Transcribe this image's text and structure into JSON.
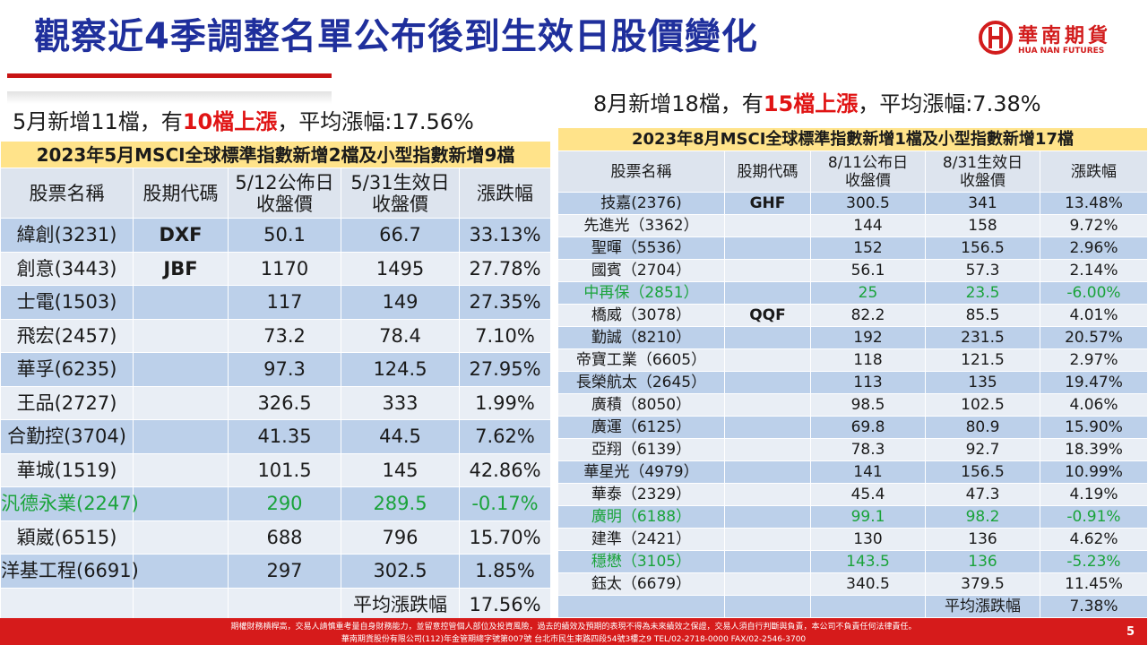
{
  "title": "觀察近4季調整名單公布後到生效日股價變化",
  "logo": {
    "cn": "華南期貨",
    "en": "HUA NAN FUTURES"
  },
  "colors": {
    "title": "#1f2f9c",
    "accent_red": "#e01414",
    "rise_down_green": "#1aa33a",
    "banner_yellow": "#ffe38a",
    "row_blue": "#bcd0ea",
    "row_light": "#e9eef5",
    "footer_red": "#d61b1b"
  },
  "left": {
    "summary": {
      "pre": "5月新增11檔，有",
      "highlight": "10檔上漲",
      "post": "，平均漲幅:17.56%"
    },
    "banner": "2023年5月MSCI全球標準指數新增2檔及小型指數新增9檔",
    "headers": [
      "股票名稱",
      "股期代碼",
      "5/12公佈日\n收盤價",
      "5/31生效日\n收盤價",
      "漲跌幅"
    ],
    "rows": [
      {
        "name": "緯創(3231)",
        "code": "DXF",
        "p1": "50.1",
        "p2": "66.7",
        "chg": "33.13%",
        "neg": false
      },
      {
        "name": "創意(3443)",
        "code": "JBF",
        "p1": "1170",
        "p2": "1495",
        "chg": "27.78%",
        "neg": false
      },
      {
        "name": "士電(1503)",
        "code": "",
        "p1": "117",
        "p2": "149",
        "chg": "27.35%",
        "neg": false
      },
      {
        "name": "飛宏(2457)",
        "code": "",
        "p1": "73.2",
        "p2": "78.4",
        "chg": "7.10%",
        "neg": false
      },
      {
        "name": "華孚(6235)",
        "code": "",
        "p1": "97.3",
        "p2": "124.5",
        "chg": "27.95%",
        "neg": false
      },
      {
        "name": "王品(2727)",
        "code": "",
        "p1": "326.5",
        "p2": "333",
        "chg": "1.99%",
        "neg": false
      },
      {
        "name": "合勤控(3704)",
        "code": "",
        "p1": "41.35",
        "p2": "44.5",
        "chg": "7.62%",
        "neg": false
      },
      {
        "name": "華城(1519)",
        "code": "",
        "p1": "101.5",
        "p2": "145",
        "chg": "42.86%",
        "neg": false
      },
      {
        "name": "汎德永業(2247)",
        "code": "",
        "p1": "290",
        "p2": "289.5",
        "chg": "-0.17%",
        "neg": true
      },
      {
        "name": "穎崴(6515)",
        "code": "",
        "p1": "688",
        "p2": "796",
        "chg": "15.70%",
        "neg": false
      },
      {
        "name": "洋基工程(6691)",
        "code": "",
        "p1": "297",
        "p2": "302.5",
        "chg": "1.85%",
        "neg": false
      }
    ],
    "avg_label": "平均漲跌幅",
    "avg_value": "17.56%"
  },
  "right": {
    "summary": {
      "pre": "8月新增18檔，有",
      "highlight": "15檔上漲",
      "post": "，平均漲幅:7.38%"
    },
    "banner": "2023年8月MSCI全球標準指數新增1檔及小型指數新增17檔",
    "headers": [
      "股票名稱",
      "股期代碼",
      "8/11公布日\n收盤價",
      "8/31生效日\n收盤價",
      "漲跌幅"
    ],
    "rows": [
      {
        "name": "技嘉(2376)",
        "code": "GHF",
        "p1": "300.5",
        "p2": "341",
        "chg": "13.48%",
        "neg": false
      },
      {
        "name": "先進光（3362）",
        "code": "",
        "p1": "144",
        "p2": "158",
        "chg": "9.72%",
        "neg": false
      },
      {
        "name": "聖暉（5536）",
        "code": "",
        "p1": "152",
        "p2": "156.5",
        "chg": "2.96%",
        "neg": false
      },
      {
        "name": "國賓（2704）",
        "code": "",
        "p1": "56.1",
        "p2": "57.3",
        "chg": "2.14%",
        "neg": false
      },
      {
        "name": "中再保（2851）",
        "code": "",
        "p1": "25",
        "p2": "23.5",
        "chg": "-6.00%",
        "neg": true
      },
      {
        "name": "橋威（3078）",
        "code": "QQF",
        "p1": "82.2",
        "p2": "85.5",
        "chg": "4.01%",
        "neg": false
      },
      {
        "name": "勤誠（8210）",
        "code": "",
        "p1": "192",
        "p2": "231.5",
        "chg": "20.57%",
        "neg": false
      },
      {
        "name": "帝寶工業（6605）",
        "code": "",
        "p1": "118",
        "p2": "121.5",
        "chg": "2.97%",
        "neg": false
      },
      {
        "name": "長榮航太（2645）",
        "code": "",
        "p1": "113",
        "p2": "135",
        "chg": "19.47%",
        "neg": false
      },
      {
        "name": "廣積（8050）",
        "code": "",
        "p1": "98.5",
        "p2": "102.5",
        "chg": "4.06%",
        "neg": false
      },
      {
        "name": "廣運（6125）",
        "code": "",
        "p1": "69.8",
        "p2": "80.9",
        "chg": "15.90%",
        "neg": false
      },
      {
        "name": "亞翔（6139）",
        "code": "",
        "p1": "78.3",
        "p2": "92.7",
        "chg": "18.39%",
        "neg": false
      },
      {
        "name": "華星光（4979）",
        "code": "",
        "p1": "141",
        "p2": "156.5",
        "chg": "10.99%",
        "neg": false
      },
      {
        "name": "華泰（2329）",
        "code": "",
        "p1": "45.4",
        "p2": "47.3",
        "chg": "4.19%",
        "neg": false
      },
      {
        "name": "廣明（6188）",
        "code": "",
        "p1": "99.1",
        "p2": "98.2",
        "chg": "-0.91%",
        "neg": true
      },
      {
        "name": "建準（2421）",
        "code": "",
        "p1": "130",
        "p2": "136",
        "chg": "4.62%",
        "neg": false
      },
      {
        "name": "穩懋（3105）",
        "code": "",
        "p1": "143.5",
        "p2": "136",
        "chg": "-5.23%",
        "neg": true
      },
      {
        "name": "鈺太（6679）",
        "code": "",
        "p1": "340.5",
        "p2": "379.5",
        "chg": "11.45%",
        "neg": false
      }
    ],
    "avg_label": "平均漲跌幅",
    "avg_value": "7.38%"
  },
  "footer": {
    "line1": "期權財務槓桿高，交易人請慎重考量自身財務能力，並留意控管個人部位及投資風險，過去的績效及預期的表現不得為未來績效之保證，交易人須自行判斷與負責，本公司不負責任何法律責任。",
    "line2": "華南期貨股份有限公司(112)年金管期總字號第007號 台北市民生東路四段54號3樓之9 TEL/02-2718-0000 FAX/02-2546-3700",
    "page": "5"
  }
}
